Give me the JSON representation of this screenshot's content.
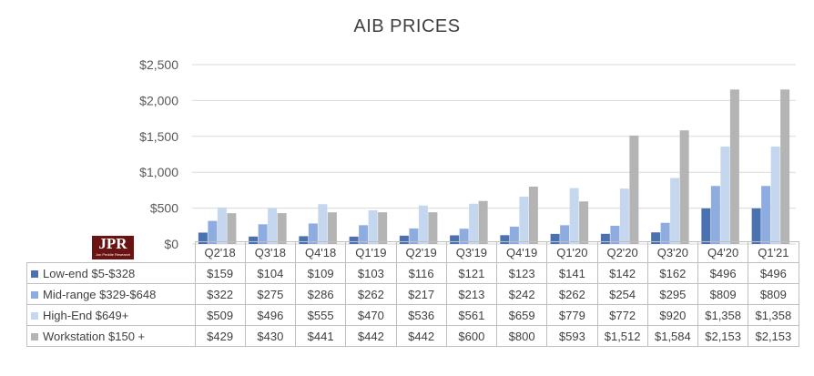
{
  "chart_data": {
    "type": "bar",
    "title": "AIB PRICES",
    "categories": [
      "Q2'18",
      "Q3'18",
      "Q4'18",
      "Q1'19",
      "Q2'19",
      "Q3'19",
      "Q4'19",
      "Q1'20",
      "Q2'20",
      "Q3'20",
      "Q4'20",
      "Q1'21"
    ],
    "ylim": [
      0,
      2500
    ],
    "yticks": [
      0,
      500,
      1000,
      1500,
      2000,
      2500
    ],
    "ytick_labels": [
      "$0",
      "$500",
      "$1,000",
      "$1,500",
      "$2,000",
      "$2,500"
    ],
    "grid": true,
    "legend": "data table below chart",
    "series": [
      {
        "name": "Low-end $5-$328",
        "color": "#4a72b0",
        "values": [
          159,
          104,
          109,
          103,
          116,
          121,
          123,
          141,
          142,
          162,
          496,
          496
        ],
        "labels": [
          "$159",
          "$104",
          "$109",
          "$103",
          "$116",
          "$121",
          "$123",
          "$141",
          "$142",
          "$162",
          "$496",
          "$496"
        ]
      },
      {
        "name": "Mid-range $329-$648",
        "color": "#8eacdf",
        "values": [
          322,
          275,
          286,
          262,
          217,
          213,
          242,
          262,
          254,
          295,
          809,
          809
        ],
        "labels": [
          "$322",
          "$275",
          "$286",
          "$262",
          "$217",
          "$213",
          "$242",
          "$262",
          "$254",
          "$295",
          "$809",
          "$809"
        ]
      },
      {
        "name": "High-End $649+",
        "color": "#c5d6ef",
        "values": [
          509,
          496,
          555,
          470,
          536,
          561,
          659,
          779,
          772,
          920,
          1358,
          1358
        ],
        "labels": [
          "$509",
          "$496",
          "$555",
          "$470",
          "$536",
          "$561",
          "$659",
          "$779",
          "$772",
          "$920",
          "$1,358",
          "$1,358"
        ]
      },
      {
        "name": "Workstation $150 +",
        "color": "#b4b4b4",
        "values": [
          429,
          430,
          441,
          442,
          442,
          600,
          800,
          593,
          1512,
          1584,
          2153,
          2153
        ],
        "labels": [
          "$429",
          "$430",
          "$441",
          "$442",
          "$442",
          "$600",
          "$800",
          "$593",
          "$1,512",
          "$1,584",
          "$2,153",
          "$2,153"
        ]
      }
    ]
  },
  "logo": {
    "text": "JPR",
    "subtext": "Jon Peddie Research"
  }
}
